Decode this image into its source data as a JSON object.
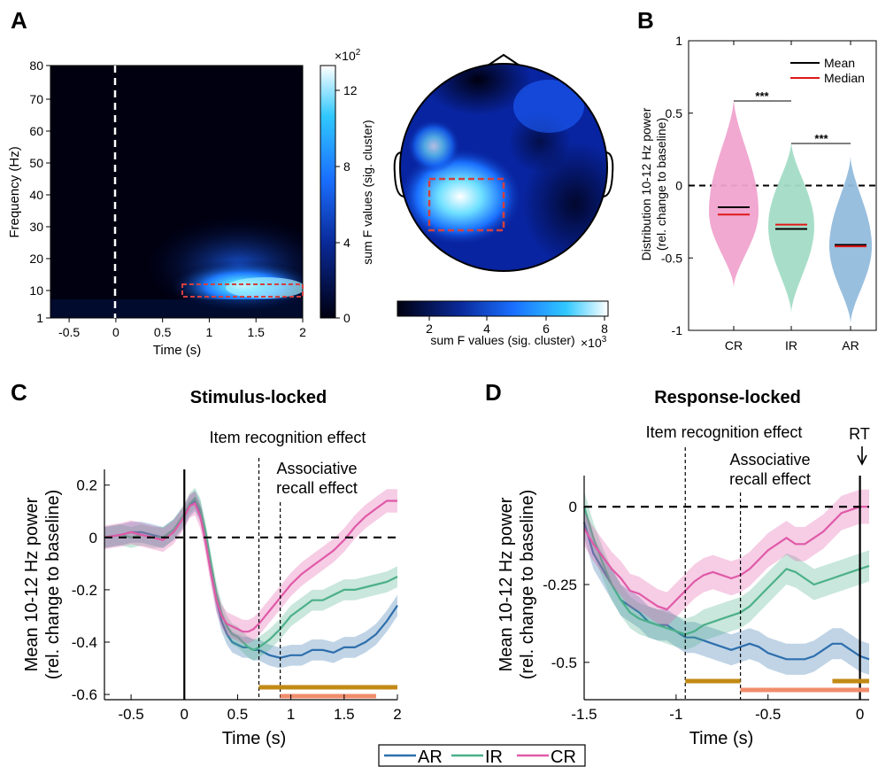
{
  "panels": {
    "A": "A",
    "B": "B",
    "C": "C",
    "D": "D",
    "C_title": "Stimulus-locked",
    "D_title": "Response-locked"
  },
  "colors": {
    "AR": "#2e6fad",
    "IR": "#4cb08a",
    "CR": "#e05aa8",
    "item_bar": "#c28a14",
    "assoc_bar": "#f08c6c",
    "box": "#d24040",
    "violin_CR": "#f0a3cf",
    "violin_IR": "#a3dcc6",
    "violin_AR": "#94bcdc",
    "mean": "#000000",
    "median": "#e01818"
  },
  "chart_data": [
    {
      "id": "A-tf",
      "type": "heatmap",
      "xlabel": "Time (s)",
      "ylabel": "Frequency (Hz)",
      "xticks": [
        "-0.5",
        "0",
        "0.5",
        "1",
        "1.5",
        "2"
      ],
      "yticks": [
        "80",
        "70",
        "60",
        "50",
        "40",
        "30",
        "20",
        "10",
        "1"
      ],
      "xlim": [
        -0.7,
        2
      ],
      "ylim": [
        1,
        80
      ],
      "colorbar_label": "sum F values (sig. cluster)",
      "colorbar_ticks": [
        "12",
        "8",
        "4",
        "0"
      ],
      "colorbar_exponent": "×10",
      "colorbar_exponent_power": "2",
      "cluster_box": {
        "t": [
          0.7,
          2.0
        ],
        "f": [
          8,
          12
        ]
      }
    },
    {
      "id": "A-topo",
      "type": "heatmap",
      "colorbar_label": "sum F values (sig. cluster)",
      "colorbar_ticks": [
        "2",
        "4",
        "6",
        "8"
      ],
      "colorbar_exponent": "×10",
      "colorbar_exponent_power": "3"
    },
    {
      "id": "B",
      "type": "violin",
      "ylabel_lines": [
        "Distribution 10-12 Hz power",
        "(rel. change to baseline)"
      ],
      "categories": [
        "CR",
        "IR",
        "AR"
      ],
      "yticks": [
        "1",
        "0.5",
        "0",
        "-0.5",
        "-1"
      ],
      "ylim": [
        -1,
        1
      ],
      "mean": [
        -0.15,
        -0.3,
        -0.41
      ],
      "median": [
        -0.2,
        -0.27,
        -0.42
      ],
      "legend": [
        "Mean",
        "Median"
      ],
      "significance": [
        "***",
        "***"
      ]
    },
    {
      "id": "C",
      "type": "line",
      "title": "Stimulus-locked",
      "xlabel": "Time (s)",
      "ylabel_lines": [
        "Mean 10-12 Hz power",
        "(rel. change to baseline)"
      ],
      "xticks": [
        "-0.5",
        "0",
        "0.5",
        "1",
        "1.5",
        "2"
      ],
      "yticks": [
        "0.2",
        "0",
        "-0.2",
        "-0.4",
        "-0.6"
      ],
      "xlim": [
        -0.75,
        2
      ],
      "ylim": [
        -0.62,
        0.26
      ],
      "annotations": [
        "Item recognition effect",
        "Associative",
        "recall effect"
      ],
      "effect_lines_x": [
        0.7,
        0.9
      ],
      "sig_bars": [
        {
          "name": "item",
          "x": [
            0.7,
            2.0
          ]
        },
        {
          "name": "assoc",
          "x": [
            0.9,
            1.8
          ]
        }
      ],
      "x": [
        -0.75,
        -0.6,
        -0.5,
        -0.4,
        -0.3,
        -0.2,
        -0.1,
        0,
        0.05,
        0.1,
        0.15,
        0.2,
        0.25,
        0.3,
        0.35,
        0.4,
        0.45,
        0.5,
        0.55,
        0.6,
        0.65,
        0.7,
        0.8,
        0.9,
        1.0,
        1.1,
        1.2,
        1.3,
        1.4,
        1.5,
        1.6,
        1.7,
        1.8,
        1.9,
        2.0
      ],
      "series": [
        {
          "name": "AR",
          "values": [
            0,
            0.01,
            0.02,
            0.02,
            0.01,
            0,
            0.03,
            0.08,
            0.12,
            0.14,
            0.1,
            0,
            -0.12,
            -0.24,
            -0.32,
            -0.37,
            -0.4,
            -0.41,
            -0.42,
            -0.42,
            -0.43,
            -0.43,
            -0.45,
            -0.46,
            -0.45,
            -0.45,
            -0.43,
            -0.43,
            -0.44,
            -0.42,
            -0.42,
            -0.4,
            -0.37,
            -0.32,
            -0.26
          ],
          "err": 0.04
        },
        {
          "name": "IR",
          "values": [
            0,
            0.01,
            0,
            0.01,
            0,
            0,
            0.03,
            0.09,
            0.13,
            0.15,
            0.11,
            0.02,
            -0.1,
            -0.21,
            -0.29,
            -0.34,
            -0.37,
            -0.38,
            -0.4,
            -0.42,
            -0.43,
            -0.42,
            -0.39,
            -0.35,
            -0.3,
            -0.27,
            -0.24,
            -0.24,
            -0.22,
            -0.2,
            -0.2,
            -0.19,
            -0.18,
            -0.17,
            -0.15
          ],
          "err": 0.04
        },
        {
          "name": "CR",
          "values": [
            0,
            0.01,
            0.02,
            0.01,
            0,
            -0.01,
            0.02,
            0.08,
            0.12,
            0.13,
            0.08,
            -0.02,
            -0.14,
            -0.24,
            -0.3,
            -0.33,
            -0.34,
            -0.35,
            -0.36,
            -0.36,
            -0.35,
            -0.33,
            -0.28,
            -0.23,
            -0.18,
            -0.14,
            -0.11,
            -0.08,
            -0.05,
            -0.01,
            0.04,
            0.08,
            0.11,
            0.14,
            0.14
          ],
          "err": 0.045
        }
      ]
    },
    {
      "id": "D",
      "type": "line",
      "title": "Response-locked",
      "xlabel": "Time (s)",
      "ylabel_lines": [
        "Mean 10-12 Hz power",
        "(rel. change to baseline)"
      ],
      "xticks": [
        "-1.5",
        "-1",
        "-0.5",
        "0"
      ],
      "yticks": [
        "0",
        "-0.25",
        "-0.5"
      ],
      "xlim": [
        -1.5,
        0.05
      ],
      "ylim": [
        -0.62,
        0.1
      ],
      "annotations": [
        "Item recognition effect",
        "Associative",
        "recall effect",
        "RT"
      ],
      "effect_lines_x": [
        -0.95,
        -0.65,
        0
      ],
      "sig_bars": [
        {
          "name": "item",
          "x": [
            -0.95,
            -0.65
          ]
        },
        {
          "name": "item",
          "x": [
            -0.15,
            0.05
          ]
        },
        {
          "name": "assoc",
          "x": [
            -0.65,
            0.05
          ]
        }
      ],
      "x": [
        -1.5,
        -1.45,
        -1.4,
        -1.35,
        -1.3,
        -1.25,
        -1.2,
        -1.15,
        -1.1,
        -1.05,
        -1.0,
        -0.95,
        -0.9,
        -0.85,
        -0.8,
        -0.75,
        -0.7,
        -0.65,
        -0.6,
        -0.55,
        -0.5,
        -0.45,
        -0.4,
        -0.35,
        -0.3,
        -0.25,
        -0.2,
        -0.15,
        -0.1,
        -0.05,
        0,
        0.05
      ],
      "series": [
        {
          "name": "AR",
          "values": [
            -0.05,
            -0.15,
            -0.2,
            -0.25,
            -0.3,
            -0.32,
            -0.34,
            -0.37,
            -0.38,
            -0.38,
            -0.4,
            -0.42,
            -0.42,
            -0.43,
            -0.44,
            -0.45,
            -0.46,
            -0.45,
            -0.44,
            -0.45,
            -0.47,
            -0.48,
            -0.49,
            -0.49,
            -0.49,
            -0.48,
            -0.46,
            -0.44,
            -0.44,
            -0.46,
            -0.48,
            -0.49
          ],
          "err": 0.05
        },
        {
          "name": "IR",
          "values": [
            0,
            -0.1,
            -0.18,
            -0.25,
            -0.3,
            -0.34,
            -0.36,
            -0.37,
            -0.38,
            -0.39,
            -0.4,
            -0.41,
            -0.4,
            -0.38,
            -0.37,
            -0.36,
            -0.35,
            -0.34,
            -0.32,
            -0.29,
            -0.26,
            -0.23,
            -0.2,
            -0.21,
            -0.23,
            -0.25,
            -0.24,
            -0.23,
            -0.22,
            -0.21,
            -0.2,
            -0.19
          ],
          "err": 0.05
        },
        {
          "name": "CR",
          "values": [
            -0.07,
            -0.12,
            -0.16,
            -0.2,
            -0.23,
            -0.27,
            -0.28,
            -0.3,
            -0.32,
            -0.33,
            -0.3,
            -0.27,
            -0.24,
            -0.22,
            -0.21,
            -0.22,
            -0.23,
            -0.22,
            -0.2,
            -0.17,
            -0.14,
            -0.12,
            -0.1,
            -0.12,
            -0.12,
            -0.1,
            -0.08,
            -0.05,
            -0.02,
            -0.01,
            0,
            0
          ],
          "err": 0.055
        }
      ]
    }
  ],
  "legend": {
    "items": [
      "AR",
      "IR",
      "CR"
    ]
  }
}
